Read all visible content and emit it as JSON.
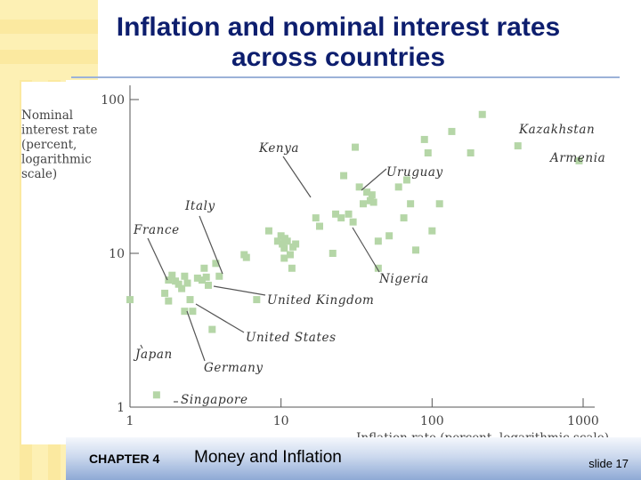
{
  "slide": {
    "title_line1": "Inflation and nominal interest rates",
    "title_line2": "across  countries",
    "chapter_label": "CHAPTER 4",
    "topic": "Money and Inflation",
    "slide_number": "slide 17"
  },
  "colors": {
    "title": "#0d1e6e",
    "marker": "#b5d6a7",
    "bg_yellow": "#fdf0b4",
    "footer_blue": "#8ea9d5"
  },
  "chart_data": {
    "type": "scatter",
    "title": "",
    "xlabel": "Inflation rate (percent, logarithmic scale)",
    "ylabel": [
      "Nominal",
      "interest rate",
      "(percent,",
      "logarithmic",
      "scale)"
    ],
    "x_scale": "log",
    "y_scale": "log",
    "xlim": [
      1,
      1000
    ],
    "ylim": [
      1,
      100
    ],
    "x_ticks": [
      1,
      10,
      100,
      1000
    ],
    "y_ticks": [
      1,
      10,
      100
    ],
    "grid": false,
    "series": [
      {
        "points": [
          [
            1.0,
            5.0
          ],
          [
            1.5,
            1.2
          ],
          [
            1.7,
            5.5
          ],
          [
            1.8,
            6.7
          ],
          [
            1.8,
            4.9
          ],
          [
            1.9,
            7.2
          ],
          [
            2.0,
            6.6
          ],
          [
            2.1,
            6.3
          ],
          [
            2.2,
            5.9
          ],
          [
            2.3,
            7.1
          ],
          [
            2.3,
            4.2
          ],
          [
            2.4,
            6.4
          ],
          [
            2.5,
            5.0
          ],
          [
            2.6,
            4.2
          ],
          [
            2.8,
            6.9
          ],
          [
            3.0,
            6.7
          ],
          [
            3.1,
            8.0
          ],
          [
            3.2,
            7.0
          ],
          [
            3.3,
            6.2
          ],
          [
            3.5,
            3.2
          ],
          [
            3.7,
            8.6
          ],
          [
            3.9,
            7.1
          ],
          [
            5.7,
            9.8
          ],
          [
            5.9,
            9.4
          ],
          [
            6.9,
            5.0
          ],
          [
            8.3,
            14.0
          ],
          [
            9.5,
            12.0
          ],
          [
            10.0,
            13.0
          ],
          [
            10.2,
            11.5
          ],
          [
            10.6,
            12.5
          ],
          [
            10.5,
            9.3
          ],
          [
            10.5,
            10.8
          ],
          [
            11.0,
            12.0
          ],
          [
            11.5,
            9.8
          ],
          [
            11.8,
            8.0
          ],
          [
            12.0,
            11.0
          ],
          [
            12.5,
            11.5
          ],
          [
            17.0,
            17.0
          ],
          [
            18.0,
            15.0
          ],
          [
            22.0,
            10.0
          ],
          [
            23.0,
            18.0
          ],
          [
            25.0,
            17.0
          ],
          [
            26.0,
            32.0
          ],
          [
            28.0,
            18.0
          ],
          [
            30.0,
            16.0
          ],
          [
            31.0,
            49.0
          ],
          [
            33.0,
            27.0
          ],
          [
            35.0,
            21.0
          ],
          [
            37.0,
            25.0
          ],
          [
            39.0,
            22.0
          ],
          [
            40.0,
            24.0
          ],
          [
            41.0,
            21.5
          ],
          [
            44.0,
            12.0
          ],
          [
            44.0,
            8.0
          ],
          [
            52.0,
            13.0
          ],
          [
            60.0,
            27.0
          ],
          [
            65.0,
            17.0
          ],
          [
            68.0,
            30.0
          ],
          [
            72.0,
            21.0
          ],
          [
            78.0,
            10.5
          ],
          [
            89.0,
            55.0
          ],
          [
            94.0,
            45.0
          ],
          [
            100.0,
            14.0
          ],
          [
            112.0,
            21.0
          ],
          [
            135.0,
            62.0
          ],
          [
            180.0,
            45.0
          ],
          [
            215.0,
            80.0
          ],
          [
            370.0,
            50.0
          ],
          [
            940.0,
            40.0
          ]
        ]
      }
    ],
    "annotations": [
      {
        "text": "Kazakhstan",
        "point": [
          370.0,
          50.0
        ]
      },
      {
        "text": "Armenia",
        "point": [
          940.0,
          40.0
        ]
      },
      {
        "text": "Kenya",
        "point": [
          22.0,
          18.0
        ]
      },
      {
        "text": "Uruguay",
        "point": [
          60.0,
          27.0
        ]
      },
      {
        "text": "Italy",
        "point": [
          3.5,
          6.5
        ]
      },
      {
        "text": "France",
        "point": [
          2.1,
          6.3
        ]
      },
      {
        "text": "Nigeria",
        "point": [
          28.0,
          12.0
        ]
      },
      {
        "text": "United Kingdom",
        "point": [
          2.8,
          6.9
        ]
      },
      {
        "text": "United States",
        "point": [
          2.3,
          5.9
        ]
      },
      {
        "text": "Japan",
        "point": [
          1.0,
          5.0
        ]
      },
      {
        "text": "Germany",
        "point": [
          2.0,
          6.6
        ]
      },
      {
        "text": "Singapore",
        "point": [
          1.5,
          1.2
        ]
      }
    ]
  }
}
